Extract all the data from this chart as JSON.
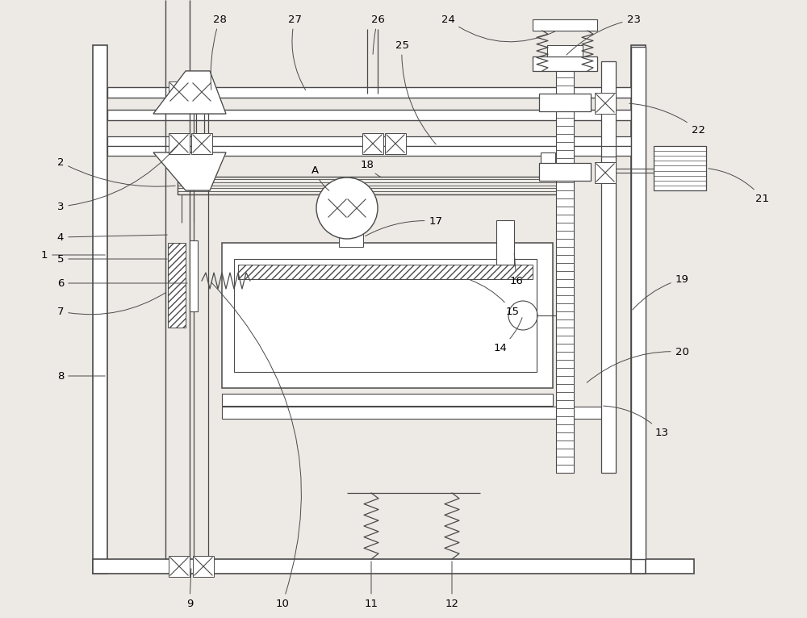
{
  "bg_color": "#ede9e5",
  "line_color": "#4a4a4a",
  "fig_w": 10.0,
  "fig_h": 7.66,
  "dpi": 100
}
